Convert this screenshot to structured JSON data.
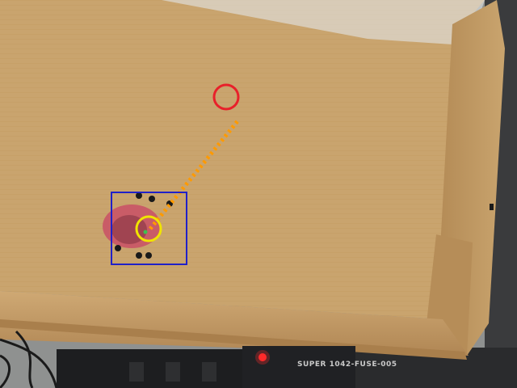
{
  "scene": {
    "description_free": true,
    "colors": {
      "cardboard_floor": "#c9a46e",
      "cardboard_floor_light": "#d2ae78",
      "cardboard_wall": "#b38a55",
      "cardboard_wall_dark": "#9f7745",
      "background_desk": "#8f9190",
      "background_dark": "#2a2b2d",
      "power_strip": "#1d1e20",
      "robot_body": "#c95c67",
      "robot_dark": "#8f3b48",
      "wheel": "#1a1a1a"
    }
  },
  "overlays": {
    "target_circle": {
      "color": "#e8202a"
    },
    "robot_marker": {
      "color": "#f0e400"
    },
    "bounding_box": {
      "color": "#2020c8"
    },
    "path_line": {
      "color": "#ff9a00",
      "style": "dotted"
    }
  },
  "labels": {
    "device_label": "SUPER 1042-FUSE-005"
  }
}
